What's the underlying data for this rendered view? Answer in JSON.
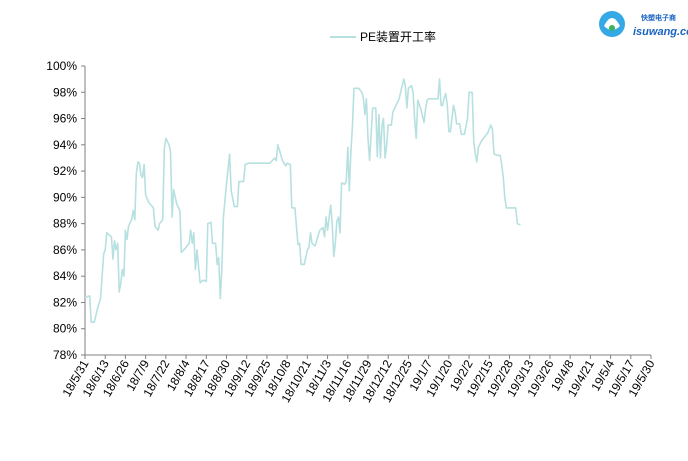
{
  "chart_data": {
    "type": "line",
    "title": "",
    "xlabel": "",
    "ylabel": "",
    "ylim": [
      78,
      100
    ],
    "y_unit": "%",
    "y_ticks": [
      78,
      80,
      82,
      84,
      86,
      88,
      90,
      92,
      94,
      96,
      98,
      100
    ],
    "x_ticks": [
      "18/5/31",
      "18/6/13",
      "18/6/26",
      "18/7/9",
      "18/7/22",
      "18/8/4",
      "18/8/17",
      "18/8/30",
      "18/9/12",
      "18/9/25",
      "18/10/8",
      "18/10/21",
      "18/11/3",
      "18/11/16",
      "18/11/29",
      "18/12/12",
      "18/12/25",
      "19/1/7",
      "19/1/20",
      "19/2/2",
      "19/2/15",
      "19/2/28",
      "19/3/13",
      "19/3/26",
      "19/4/8",
      "19/4/21",
      "19/5/4",
      "19/5/17",
      "19/5/30"
    ],
    "x_start": "2018-05-31",
    "x_end": "2019-05-30",
    "grid": false,
    "legend_position": "top-center",
    "series": [
      {
        "name": "PE装置开工率",
        "color": "#b7e0e0",
        "points": [
          [
            "2018-05-31",
            82.4
          ],
          [
            "2018-06-03",
            82.5
          ],
          [
            "2018-06-04",
            80.5
          ],
          [
            "2018-06-06",
            80.5
          ],
          [
            "2018-06-08",
            81.5
          ],
          [
            "2018-06-10",
            82.3
          ],
          [
            "2018-06-11",
            84.0
          ],
          [
            "2018-06-12",
            85.7
          ],
          [
            "2018-06-13",
            86.0
          ],
          [
            "2018-06-14",
            87.3
          ],
          [
            "2018-06-17",
            87.0
          ],
          [
            "2018-06-18",
            85.3
          ],
          [
            "2018-06-19",
            86.7
          ],
          [
            "2018-06-20",
            86.0
          ],
          [
            "2018-06-21",
            86.5
          ],
          [
            "2018-06-22",
            82.8
          ],
          [
            "2018-06-23",
            83.5
          ],
          [
            "2018-06-24",
            84.5
          ],
          [
            "2018-06-25",
            84.0
          ],
          [
            "2018-06-26",
            87.5
          ],
          [
            "2018-06-27",
            86.8
          ],
          [
            "2018-06-28",
            87.8
          ],
          [
            "2018-06-30",
            88.3
          ],
          [
            "2018-07-01",
            89.0
          ],
          [
            "2018-07-02",
            88.3
          ],
          [
            "2018-07-03",
            91.8
          ],
          [
            "2018-07-04",
            92.7
          ],
          [
            "2018-07-05",
            92.6
          ],
          [
            "2018-07-06",
            91.7
          ],
          [
            "2018-07-07",
            91.5
          ],
          [
            "2018-07-08",
            92.5
          ],
          [
            "2018-07-09",
            90.2
          ],
          [
            "2018-07-11",
            89.6
          ],
          [
            "2018-07-14",
            89.2
          ],
          [
            "2018-07-15",
            87.8
          ],
          [
            "2018-07-17",
            87.5
          ],
          [
            "2018-07-18",
            88.0
          ],
          [
            "2018-07-20",
            88.3
          ],
          [
            "2018-07-21",
            93.7
          ],
          [
            "2018-07-22",
            94.5
          ],
          [
            "2018-07-24",
            94.0
          ],
          [
            "2018-07-25",
            93.5
          ],
          [
            "2018-07-26",
            88.5
          ],
          [
            "2018-07-27",
            90.6
          ],
          [
            "2018-07-29",
            89.5
          ],
          [
            "2018-07-31",
            89.0
          ],
          [
            "2018-08-01",
            85.8
          ],
          [
            "2018-08-04",
            86.2
          ],
          [
            "2018-08-06",
            86.5
          ],
          [
            "2018-08-07",
            87.5
          ],
          [
            "2018-08-08",
            86.5
          ],
          [
            "2018-08-09",
            87.3
          ],
          [
            "2018-08-10",
            84.5
          ],
          [
            "2018-08-11",
            86.0
          ],
          [
            "2018-08-13",
            83.5
          ],
          [
            "2018-08-15",
            83.7
          ],
          [
            "2018-08-17",
            83.6
          ],
          [
            "2018-08-18",
            88.0
          ],
          [
            "2018-08-20",
            88.1
          ],
          [
            "2018-08-21",
            86.5
          ],
          [
            "2018-08-23",
            86.5
          ],
          [
            "2018-08-24",
            84.9
          ],
          [
            "2018-08-25",
            85.4
          ],
          [
            "2018-08-26",
            82.3
          ],
          [
            "2018-08-27",
            84.5
          ],
          [
            "2018-08-28",
            88.5
          ],
          [
            "2018-08-30",
            91.0
          ],
          [
            "2018-09-01",
            93.3
          ],
          [
            "2018-09-02",
            90.5
          ],
          [
            "2018-09-04",
            89.3
          ],
          [
            "2018-09-06",
            89.3
          ],
          [
            "2018-09-07",
            91.2
          ],
          [
            "2018-09-10",
            91.2
          ],
          [
            "2018-09-11",
            92.5
          ],
          [
            "2018-09-13",
            92.6
          ],
          [
            "2018-09-20",
            92.6
          ],
          [
            "2018-09-27",
            92.6
          ],
          [
            "2018-09-30",
            93.0
          ],
          [
            "2018-10-01",
            92.8
          ],
          [
            "2018-10-02",
            94.0
          ],
          [
            "2018-10-03",
            93.6
          ],
          [
            "2018-10-05",
            92.8
          ],
          [
            "2018-10-07",
            92.4
          ],
          [
            "2018-10-08",
            92.6
          ],
          [
            "2018-10-10",
            92.5
          ],
          [
            "2018-10-11",
            89.2
          ],
          [
            "2018-10-13",
            89.2
          ],
          [
            "2018-10-15",
            86.4
          ],
          [
            "2018-10-16",
            86.5
          ],
          [
            "2018-10-17",
            84.9
          ],
          [
            "2018-10-19",
            84.9
          ],
          [
            "2018-10-21",
            86.0
          ],
          [
            "2018-10-22",
            86.2
          ],
          [
            "2018-10-23",
            87.3
          ],
          [
            "2018-10-24",
            86.5
          ],
          [
            "2018-10-26",
            86.3
          ],
          [
            "2018-10-29",
            87.5
          ],
          [
            "2018-10-31",
            87.7
          ],
          [
            "2018-11-01",
            87.0
          ],
          [
            "2018-11-02",
            88.5
          ],
          [
            "2018-11-03",
            87.5
          ],
          [
            "2018-11-05",
            89.4
          ],
          [
            "2018-11-06",
            88.0
          ],
          [
            "2018-11-07",
            85.5
          ],
          [
            "2018-11-08",
            86.5
          ],
          [
            "2018-11-09",
            88.2
          ],
          [
            "2018-11-10",
            88.5
          ],
          [
            "2018-11-11",
            87.3
          ],
          [
            "2018-11-12",
            91.1
          ],
          [
            "2018-11-14",
            91.0
          ],
          [
            "2018-11-15",
            91.2
          ],
          [
            "2018-11-16",
            93.8
          ],
          [
            "2018-11-17",
            90.5
          ],
          [
            "2018-11-18",
            93.5
          ],
          [
            "2018-11-19",
            95.5
          ],
          [
            "2018-11-20",
            98.3
          ],
          [
            "2018-11-23",
            98.3
          ],
          [
            "2018-11-25",
            98.0
          ],
          [
            "2018-11-26",
            97.6
          ],
          [
            "2018-11-27",
            96.3
          ],
          [
            "2018-11-28",
            97.5
          ],
          [
            "2018-11-29",
            94.5
          ],
          [
            "2018-11-30",
            92.8
          ],
          [
            "2018-12-02",
            96.8
          ],
          [
            "2018-12-04",
            96.8
          ],
          [
            "2018-12-05",
            93.1
          ],
          [
            "2018-12-06",
            96.3
          ],
          [
            "2018-12-07",
            93.0
          ],
          [
            "2018-12-08",
            95.5
          ],
          [
            "2018-12-09",
            96.0
          ],
          [
            "2018-12-10",
            93.0
          ],
          [
            "2018-12-11",
            94.0
          ],
          [
            "2018-12-12",
            95.5
          ],
          [
            "2018-12-14",
            95.5
          ],
          [
            "2018-12-15",
            96.5
          ],
          [
            "2018-12-17",
            97.0
          ],
          [
            "2018-12-19",
            97.5
          ],
          [
            "2018-12-21",
            98.5
          ],
          [
            "2018-12-22",
            99.0
          ],
          [
            "2018-12-23",
            98.5
          ],
          [
            "2018-12-24",
            96.8
          ],
          [
            "2018-12-25",
            98.3
          ],
          [
            "2018-12-27",
            98.5
          ],
          [
            "2018-12-28",
            98.0
          ],
          [
            "2018-12-29",
            96.0
          ],
          [
            "2018-12-30",
            94.5
          ],
          [
            "2018-12-31",
            97.4
          ],
          [
            "2019-01-02",
            96.7
          ],
          [
            "2019-01-04",
            95.7
          ],
          [
            "2019-01-05",
            96.7
          ],
          [
            "2019-01-06",
            97.4
          ],
          [
            "2019-01-07",
            97.5
          ],
          [
            "2019-01-11",
            97.5
          ],
          [
            "2019-01-13",
            97.5
          ],
          [
            "2019-01-14",
            99.0
          ],
          [
            "2019-01-15",
            97.0
          ],
          [
            "2019-01-16",
            97.0
          ],
          [
            "2019-01-17",
            97.6
          ],
          [
            "2019-01-18",
            97.9
          ],
          [
            "2019-01-19",
            97.0
          ],
          [
            "2019-01-20",
            95.0
          ],
          [
            "2019-01-21",
            95.0
          ],
          [
            "2019-01-23",
            97.0
          ],
          [
            "2019-01-24",
            96.5
          ],
          [
            "2019-01-25",
            95.6
          ],
          [
            "2019-01-27",
            95.6
          ],
          [
            "2019-01-28",
            94.8
          ],
          [
            "2019-01-30",
            94.8
          ],
          [
            "2019-02-01",
            96.0
          ],
          [
            "2019-02-02",
            98.0
          ],
          [
            "2019-02-04",
            98.0
          ],
          [
            "2019-02-05",
            94.3
          ],
          [
            "2019-02-06",
            93.3
          ],
          [
            "2019-02-07",
            92.7
          ],
          [
            "2019-02-08",
            93.8
          ],
          [
            "2019-02-10",
            94.3
          ],
          [
            "2019-02-12",
            94.6
          ],
          [
            "2019-02-14",
            94.9
          ],
          [
            "2019-02-16",
            95.5
          ],
          [
            "2019-02-17",
            95.2
          ],
          [
            "2019-02-18",
            93.3
          ],
          [
            "2019-02-20",
            93.2
          ],
          [
            "2019-02-22",
            93.2
          ],
          [
            "2019-02-23",
            92.5
          ],
          [
            "2019-02-24",
            91.5
          ],
          [
            "2019-02-25",
            90.0
          ],
          [
            "2019-02-26",
            89.2
          ],
          [
            "2019-02-28",
            89.2
          ],
          [
            "2019-03-02",
            89.2
          ],
          [
            "2019-03-04",
            89.2
          ],
          [
            "2019-03-05",
            88.0
          ],
          [
            "2019-03-07",
            87.9
          ]
        ]
      }
    ]
  },
  "logo": {
    "cn": "快塑电子商",
    "en": "isuwang.co"
  }
}
